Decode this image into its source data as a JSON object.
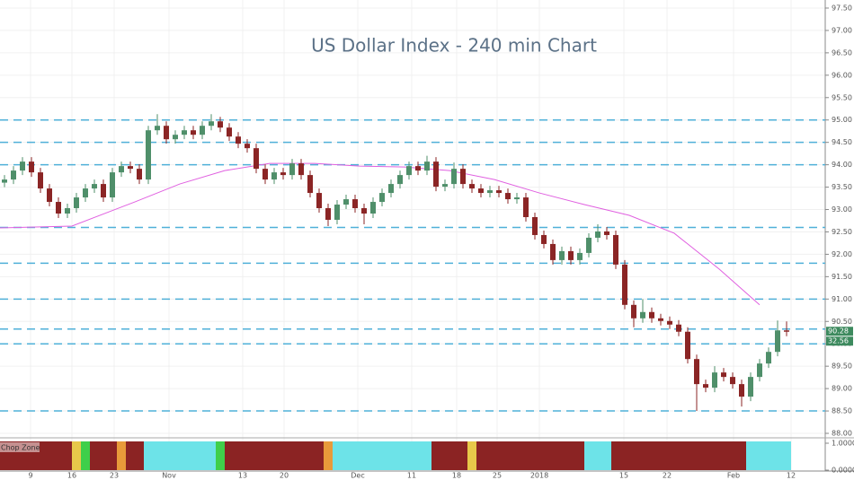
{
  "chart_data": {
    "type": "candlestick",
    "title": "US Dollar Index - 240 min Chart",
    "xlim": [
      -0.5,
      91.3
    ],
    "ylim": [
      87.9,
      97.68
    ],
    "xticks": [
      {
        "value": 2.9,
        "label": "9"
      },
      {
        "value": 7.5,
        "label": "16"
      },
      {
        "value": 12.2,
        "label": "23"
      },
      {
        "value": 18.3,
        "label": "Nov"
      },
      {
        "value": 26.5,
        "label": "13"
      },
      {
        "value": 31.1,
        "label": "20"
      },
      {
        "value": 39.3,
        "label": "Dec"
      },
      {
        "value": 45.3,
        "label": "11"
      },
      {
        "value": 50.3,
        "label": "18"
      },
      {
        "value": 54.8,
        "label": "25"
      },
      {
        "value": 59.5,
        "label": "2018"
      },
      {
        "value": 68.9,
        "label": "15"
      },
      {
        "value": 73.7,
        "label": "22"
      },
      {
        "value": 81.1,
        "label": "Feb"
      },
      {
        "value": 87.5,
        "label": "12"
      }
    ],
    "yticks": [
      {
        "value": 88,
        "label": "88.00"
      },
      {
        "value": 88.5,
        "label": "88.50"
      },
      {
        "value": 89,
        "label": "89.00"
      },
      {
        "value": 89.5,
        "label": "89.50"
      },
      {
        "value": 90,
        "label": "90.00"
      },
      {
        "value": 90.5,
        "label": "90.50"
      },
      {
        "value": 91,
        "label": "91.00"
      },
      {
        "value": 91.5,
        "label": "91.50"
      },
      {
        "value": 92,
        "label": "92.00"
      },
      {
        "value": 92.5,
        "label": "92.50"
      },
      {
        "value": 93,
        "label": "93.00"
      },
      {
        "value": 93.5,
        "label": "93.50"
      },
      {
        "value": 94,
        "label": "94.00"
      },
      {
        "value": 94.5,
        "label": "94.50"
      },
      {
        "value": 95,
        "label": "95.00"
      },
      {
        "value": 95.5,
        "label": "95.50"
      },
      {
        "value": 96,
        "label": "96.00"
      },
      {
        "value": 96.5,
        "label": "96.50"
      },
      {
        "value": 97,
        "label": "97.00"
      },
      {
        "value": 97.5,
        "label": "97.50"
      }
    ],
    "grid": true,
    "up_color": "#4f8f6a",
    "down_color": "#8b2525",
    "open": [
      93.6,
      93.67,
      93.87,
      94.07,
      93.83,
      93.47,
      93.17,
      92.91,
      93.03,
      93.27,
      93.47,
      93.57,
      93.27,
      93.83,
      93.97,
      93.91,
      93.67,
      94.77,
      94.87,
      94.57,
      94.67,
      94.77,
      94.67,
      94.87,
      94.97,
      94.83,
      94.63,
      94.47,
      94.37,
      93.91,
      93.67,
      93.83,
      93.77,
      94.03,
      93.77,
      93.37,
      93.03,
      92.77,
      93.11,
      93.23,
      93.03,
      92.91,
      93.17,
      93.37,
      93.57,
      93.77,
      93.97,
      93.87,
      94.07,
      93.51,
      93.57,
      93.91,
      93.57,
      93.47,
      93.37,
      93.43,
      93.37,
      93.23,
      93.27,
      92.83,
      92.43,
      92.23,
      91.87,
      92.07,
      91.87,
      92.03,
      92.37,
      92.51,
      92.43,
      91.77,
      90.87,
      90.57,
      90.71,
      90.57,
      90.51,
      90.43,
      90.27,
      89.66,
      89.1,
      89.02,
      89.36,
      89.26,
      89.1,
      88.82,
      89.26,
      89.56,
      89.82,
      90.3
    ],
    "high": [
      93.77,
      93.97,
      94.17,
      94.17,
      93.93,
      93.57,
      93.27,
      93.13,
      93.37,
      93.57,
      93.67,
      93.67,
      93.93,
      94.07,
      94.07,
      94.01,
      94.87,
      95.13,
      94.97,
      94.77,
      94.87,
      94.87,
      94.97,
      95.13,
      95.07,
      94.93,
      94.73,
      94.57,
      94.47,
      94.01,
      93.93,
      93.93,
      94.13,
      94.13,
      93.87,
      93.47,
      93.13,
      93.21,
      93.33,
      93.33,
      93.13,
      93.27,
      93.47,
      93.67,
      93.87,
      94.07,
      94.07,
      94.2,
      94.17,
      93.67,
      94.05,
      94.01,
      93.67,
      93.57,
      93.53,
      93.53,
      93.47,
      93.37,
      93.37,
      92.93,
      92.53,
      92.33,
      92.17,
      92.17,
      92.13,
      92.47,
      92.67,
      92.61,
      92.53,
      91.87,
      90.97,
      91.0,
      90.81,
      90.67,
      90.61,
      90.53,
      90.37,
      89.76,
      89.2,
      89.5,
      89.46,
      89.36,
      89.2,
      89.36,
      89.66,
      89.92,
      90.52,
      90.5
    ],
    "low": [
      93.5,
      93.57,
      93.77,
      93.73,
      93.37,
      93.07,
      92.81,
      92.81,
      92.93,
      93.17,
      93.37,
      93.17,
      93.17,
      93.73,
      93.81,
      93.57,
      93.57,
      94.67,
      94.47,
      94.47,
      94.57,
      94.57,
      94.57,
      94.77,
      94.73,
      94.53,
      94.37,
      94.27,
      93.81,
      93.57,
      93.57,
      93.67,
      93.67,
      93.67,
      93.27,
      92.93,
      92.63,
      92.67,
      93.01,
      92.93,
      92.67,
      92.81,
      93.07,
      93.27,
      93.47,
      93.67,
      93.77,
      93.77,
      93.41,
      93.41,
      93.47,
      93.47,
      93.37,
      93.27,
      93.27,
      93.27,
      93.13,
      93.13,
      92.73,
      92.33,
      92.13,
      91.77,
      91.77,
      91.77,
      91.77,
      91.93,
      92.27,
      92.33,
      91.67,
      90.77,
      90.37,
      90.47,
      90.47,
      90.41,
      90.33,
      90.17,
      89.56,
      88.5,
      88.92,
      88.92,
      89.16,
      89.0,
      88.6,
      88.72,
      89.16,
      89.46,
      89.72,
      90.17
    ],
    "close": [
      93.67,
      93.87,
      94.07,
      93.83,
      93.47,
      93.17,
      92.91,
      93.03,
      93.27,
      93.47,
      93.57,
      93.27,
      93.83,
      93.97,
      93.91,
      93.67,
      94.77,
      94.87,
      94.57,
      94.67,
      94.77,
      94.67,
      94.87,
      94.97,
      94.83,
      94.63,
      94.47,
      94.37,
      93.91,
      93.67,
      93.83,
      93.77,
      94.03,
      93.77,
      93.37,
      93.03,
      92.77,
      93.11,
      93.23,
      93.03,
      92.91,
      93.17,
      93.37,
      93.57,
      93.77,
      93.97,
      93.87,
      94.07,
      93.51,
      93.57,
      93.91,
      93.57,
      93.47,
      93.37,
      93.43,
      93.37,
      93.23,
      93.27,
      92.83,
      92.43,
      92.23,
      91.87,
      92.07,
      91.87,
      92.03,
      92.37,
      92.51,
      92.43,
      91.77,
      90.87,
      90.57,
      90.71,
      90.57,
      90.51,
      90.43,
      90.27,
      89.66,
      89.1,
      89.02,
      89.36,
      89.26,
      89.1,
      88.82,
      89.26,
      89.56,
      89.82,
      90.3,
      90.27
    ],
    "ma": {
      "color": "#e060e0",
      "x": [
        -0.5,
        7.5,
        14.5,
        19.5,
        24.5,
        29.5,
        34.5,
        39.5,
        44.5,
        49.5,
        54.5,
        59.5,
        64.5,
        69.5,
        74.5,
        79.5,
        84
      ],
      "values": [
        92.59,
        92.63,
        93.17,
        93.57,
        93.87,
        94.03,
        94.03,
        93.97,
        93.95,
        93.87,
        93.67,
        93.37,
        93.11,
        92.87,
        92.47,
        91.67,
        90.87
      ]
    },
    "levels": [
      95.0,
      94.5,
      94.0,
      92.6,
      91.8,
      91.0,
      90.33,
      90.0,
      88.5
    ],
    "level_color": "#4fb0d8",
    "last_price": 90.28,
    "countdown": "32.56",
    "tag_color": "#3d8a5e",
    "chop_zone": {
      "label": "Chop Zone",
      "ylim": [
        0,
        1
      ],
      "yticks": [
        {
          "value": 1,
          "label": "1.0000"
        },
        {
          "value": 0,
          "label": "0.0000"
        }
      ],
      "runs": [
        {
          "color": "#8b2323",
          "count": 8
        },
        {
          "color": "#e8c84a",
          "count": 1
        },
        {
          "color": "#3fcf4a",
          "count": 1
        },
        {
          "color": "#8b2323",
          "count": 3
        },
        {
          "color": "#e89a3a",
          "count": 1
        },
        {
          "color": "#8b2323",
          "count": 2
        },
        {
          "color": "#6de3e8",
          "count": 8
        },
        {
          "color": "#3fcf4a",
          "count": 1
        },
        {
          "color": "#8b2323",
          "count": 11
        },
        {
          "color": "#e89a3a",
          "count": 1
        },
        {
          "color": "#6de3e8",
          "count": 11
        },
        {
          "color": "#8b2323",
          "count": 4
        },
        {
          "color": "#e8c84a",
          "count": 1
        },
        {
          "color": "#8b2323",
          "count": 12
        },
        {
          "color": "#6de3e8",
          "count": 3
        },
        {
          "color": "#8b2323",
          "count": 15
        },
        {
          "color": "#6de3e8",
          "count": 5
        }
      ]
    }
  }
}
